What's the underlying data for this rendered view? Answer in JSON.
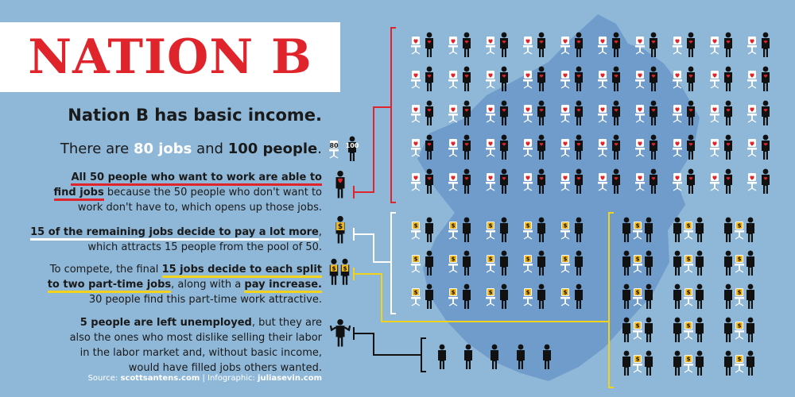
{
  "title": "NATION B",
  "subtitle": "Nation B has basic income.",
  "stats": {
    "prefix": "There are ",
    "jobs_count": "80 jobs",
    "middle": " and ",
    "people_count": "100 people",
    "suffix": "."
  },
  "icon_labels": {
    "jobs": "80",
    "people": "100"
  },
  "paragraphs": {
    "p1_highlight_a": "All 50 people who want to work are able to",
    "p1_highlight_b": "find jobs",
    "p1_rest_a": " because the 50 people who don't want to",
    "p1_rest_b": "work don't have to, which opens up those jobs.",
    "p2_highlight": "15 of the remaining jobs decide to pay a lot more",
    "p2_rest_a": ",",
    "p2_rest_b": "which attracts 15 people from the pool of 50.",
    "p3_start": "To compete, the final ",
    "p3_highlight_a": "15 jobs decide to each split",
    "p3_highlight_b": "to two part-time jobs",
    "p3_middle": ", along with a ",
    "p3_highlight_c": "pay increase.",
    "p3_rest": "30 people find this part-time work attractive.",
    "p4_highlight": "5 people are left unemployed",
    "p4_rest_a": ", but they are",
    "p4_rest_b": "also the ones who most dislike selling their labor",
    "p4_rest_c": "in the labor market and, without basic income,",
    "p4_rest_d": "would have filled jobs others wanted."
  },
  "source": {
    "label": "Source: ",
    "source_site": "scottsantens.com",
    "separator": " | ",
    "credit_label": "Infographic: ",
    "credit_site": "juliasevin.com"
  },
  "icon_groups": {
    "willing_workers": 50,
    "high_pay_workers": 15,
    "part_time_workers": 30,
    "unemployed": 5
  },
  "colors": {
    "background": "#8fb8d8",
    "map": "#6f9ccb",
    "accent_red": "#e0242b",
    "accent_yellow": "#f2d21b",
    "dollar_gold": "#f2b81b",
    "figure": "#111111"
  }
}
